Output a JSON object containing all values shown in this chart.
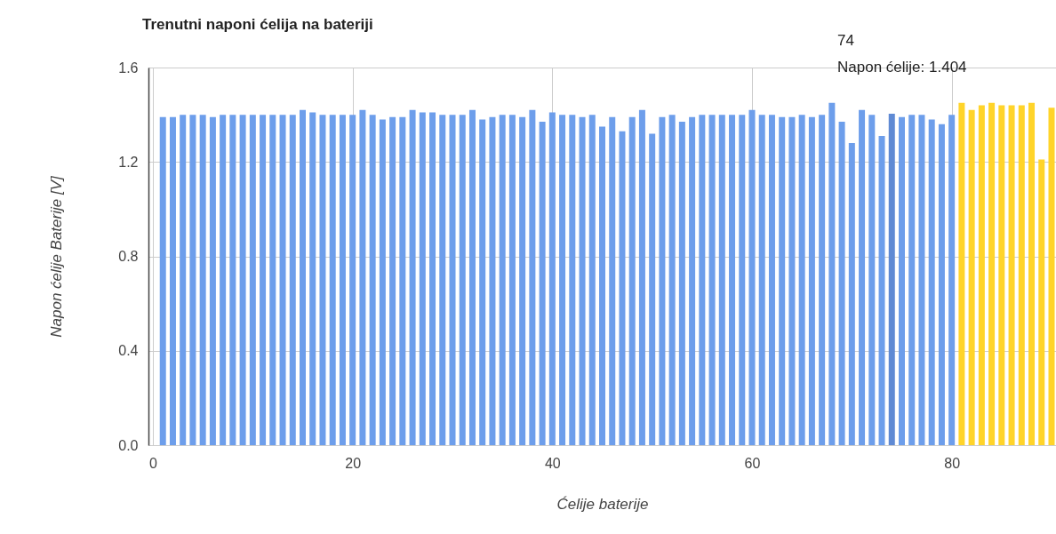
{
  "chart_data": {
    "type": "bar",
    "title": "Trenutni naponi ćelija na bateriji",
    "xlabel": "Ćelije baterije",
    "ylabel": "Napon ćelije Baterije [V]",
    "x": [
      1,
      2,
      3,
      4,
      5,
      6,
      7,
      8,
      9,
      10,
      11,
      12,
      13,
      14,
      15,
      16,
      17,
      18,
      19,
      20,
      21,
      22,
      23,
      24,
      25,
      26,
      27,
      28,
      29,
      30,
      31,
      32,
      33,
      34,
      35,
      36,
      37,
      38,
      39,
      40,
      41,
      42,
      43,
      44,
      45,
      46,
      47,
      48,
      49,
      50,
      51,
      52,
      53,
      54,
      55,
      56,
      57,
      58,
      59,
      60,
      61,
      62,
      63,
      64,
      65,
      66,
      67,
      68,
      69,
      70,
      71,
      72,
      73,
      74,
      75,
      76,
      77,
      78,
      79,
      80,
      81,
      82,
      83,
      84,
      85,
      86,
      87,
      88,
      89,
      90
    ],
    "values": [
      1.39,
      1.39,
      1.4,
      1.4,
      1.4,
      1.39,
      1.4,
      1.4,
      1.4,
      1.4,
      1.4,
      1.4,
      1.4,
      1.4,
      1.42,
      1.41,
      1.4,
      1.4,
      1.4,
      1.4,
      1.42,
      1.4,
      1.38,
      1.39,
      1.39,
      1.42,
      1.41,
      1.41,
      1.4,
      1.4,
      1.4,
      1.42,
      1.38,
      1.39,
      1.4,
      1.4,
      1.39,
      1.42,
      1.37,
      1.41,
      1.4,
      1.4,
      1.39,
      1.4,
      1.35,
      1.39,
      1.33,
      1.39,
      1.42,
      1.32,
      1.39,
      1.4,
      1.37,
      1.39,
      1.4,
      1.4,
      1.4,
      1.4,
      1.4,
      1.42,
      1.4,
      1.4,
      1.39,
      1.39,
      1.4,
      1.39,
      1.4,
      1.45,
      1.37,
      1.28,
      1.42,
      1.4,
      1.31,
      1.404,
      1.39,
      1.4,
      1.4,
      1.38,
      1.36,
      1.4,
      1.45,
      1.42,
      1.44,
      1.45,
      1.44,
      1.44,
      1.44,
      1.45,
      1.21,
      1.43
    ],
    "colors": [
      "#6d9eeb",
      "#6d9eeb",
      "#6d9eeb",
      "#6d9eeb",
      "#6d9eeb",
      "#6d9eeb",
      "#6d9eeb",
      "#6d9eeb",
      "#6d9eeb",
      "#6d9eeb",
      "#6d9eeb",
      "#6d9eeb",
      "#6d9eeb",
      "#6d9eeb",
      "#6d9eeb",
      "#6d9eeb",
      "#6d9eeb",
      "#6d9eeb",
      "#6d9eeb",
      "#6d9eeb",
      "#6d9eeb",
      "#6d9eeb",
      "#6d9eeb",
      "#6d9eeb",
      "#6d9eeb",
      "#6d9eeb",
      "#6d9eeb",
      "#6d9eeb",
      "#6d9eeb",
      "#6d9eeb",
      "#6d9eeb",
      "#6d9eeb",
      "#6d9eeb",
      "#6d9eeb",
      "#6d9eeb",
      "#6d9eeb",
      "#6d9eeb",
      "#6d9eeb",
      "#6d9eeb",
      "#6d9eeb",
      "#6d9eeb",
      "#6d9eeb",
      "#6d9eeb",
      "#6d9eeb",
      "#6d9eeb",
      "#6d9eeb",
      "#6d9eeb",
      "#6d9eeb",
      "#6d9eeb",
      "#6d9eeb",
      "#6d9eeb",
      "#6d9eeb",
      "#6d9eeb",
      "#6d9eeb",
      "#6d9eeb",
      "#6d9eeb",
      "#6d9eeb",
      "#6d9eeb",
      "#6d9eeb",
      "#6d9eeb",
      "#6d9eeb",
      "#6d9eeb",
      "#6d9eeb",
      "#6d9eeb",
      "#6d9eeb",
      "#6d9eeb",
      "#6d9eeb",
      "#6d9eeb",
      "#6d9eeb",
      "#6d9eeb",
      "#6d9eeb",
      "#6d9eeb",
      "#6d9eeb",
      "#5f8ad4",
      "#6d9eeb",
      "#6d9eeb",
      "#6d9eeb",
      "#6d9eeb",
      "#6d9eeb",
      "#6d9eeb",
      "#ffd42a",
      "#ffd42a",
      "#ffd42a",
      "#ffd42a",
      "#ffd42a",
      "#ffd42a",
      "#ffd42a",
      "#ffd42a",
      "#ffd42a",
      "#ffd42a"
    ],
    "xlim": [
      0,
      90
    ],
    "xticks": [
      0,
      20,
      40,
      60,
      80
    ],
    "ylim": [
      0,
      1.6
    ],
    "yticks": [
      {
        "value": 0,
        "label": "0.0"
      },
      {
        "value": 0.4,
        "label": "0.4"
      },
      {
        "value": 0.8,
        "label": "0.8"
      },
      {
        "value": 1.2,
        "label": "1.2"
      },
      {
        "value": 1.6,
        "label": "1.6"
      }
    ],
    "grid": true,
    "annotations": [
      "74\nNapon ćelije: 1.404"
    ]
  }
}
